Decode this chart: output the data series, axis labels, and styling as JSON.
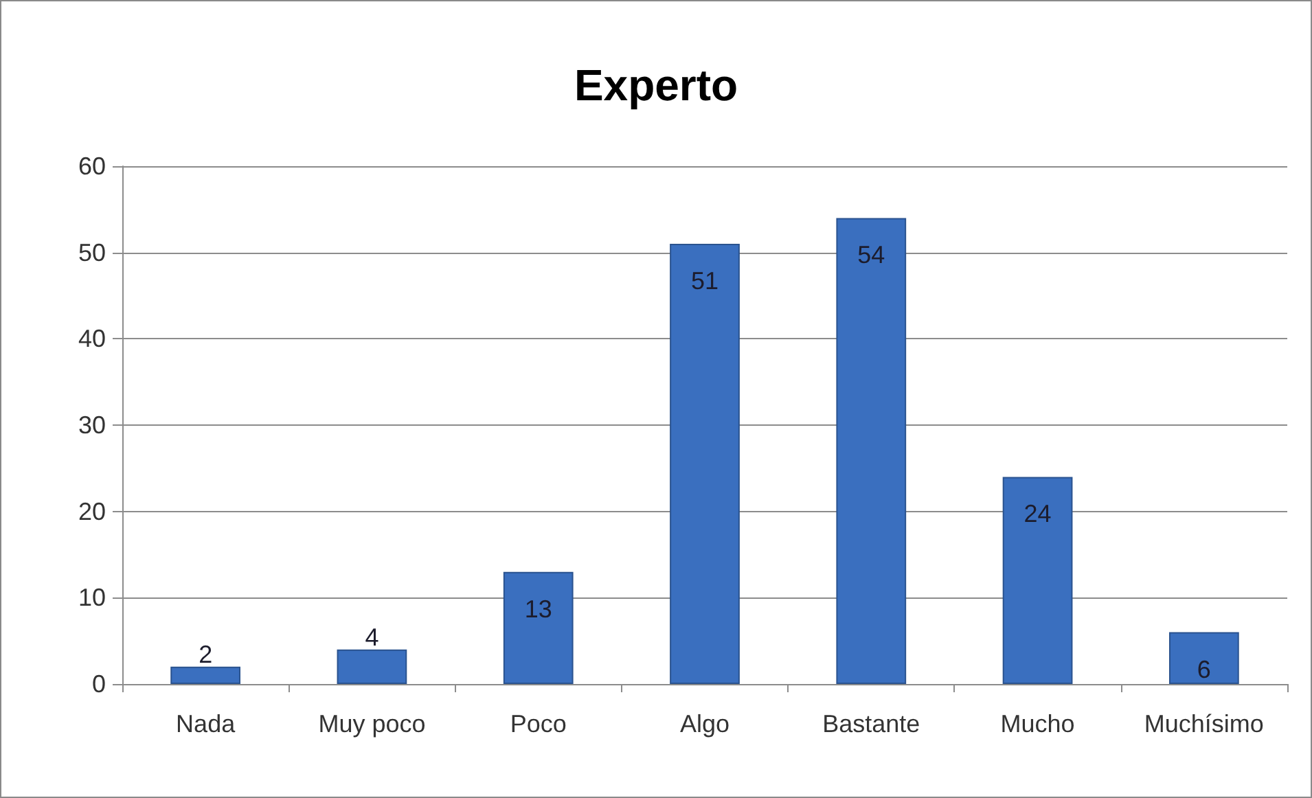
{
  "chart_data": {
    "type": "bar",
    "title": "Experto",
    "categories": [
      "Nada",
      "Muy poco",
      "Poco",
      "Algo",
      "Bastante",
      "Mucho",
      "Muchísimo"
    ],
    "values": [
      2,
      4,
      13,
      51,
      54,
      24,
      6
    ],
    "color": "#3a6fbf",
    "ylim": [
      0,
      60
    ],
    "yticks": [
      0,
      10,
      20,
      30,
      40,
      50,
      60
    ],
    "grid": "y",
    "data_labels": true
  }
}
